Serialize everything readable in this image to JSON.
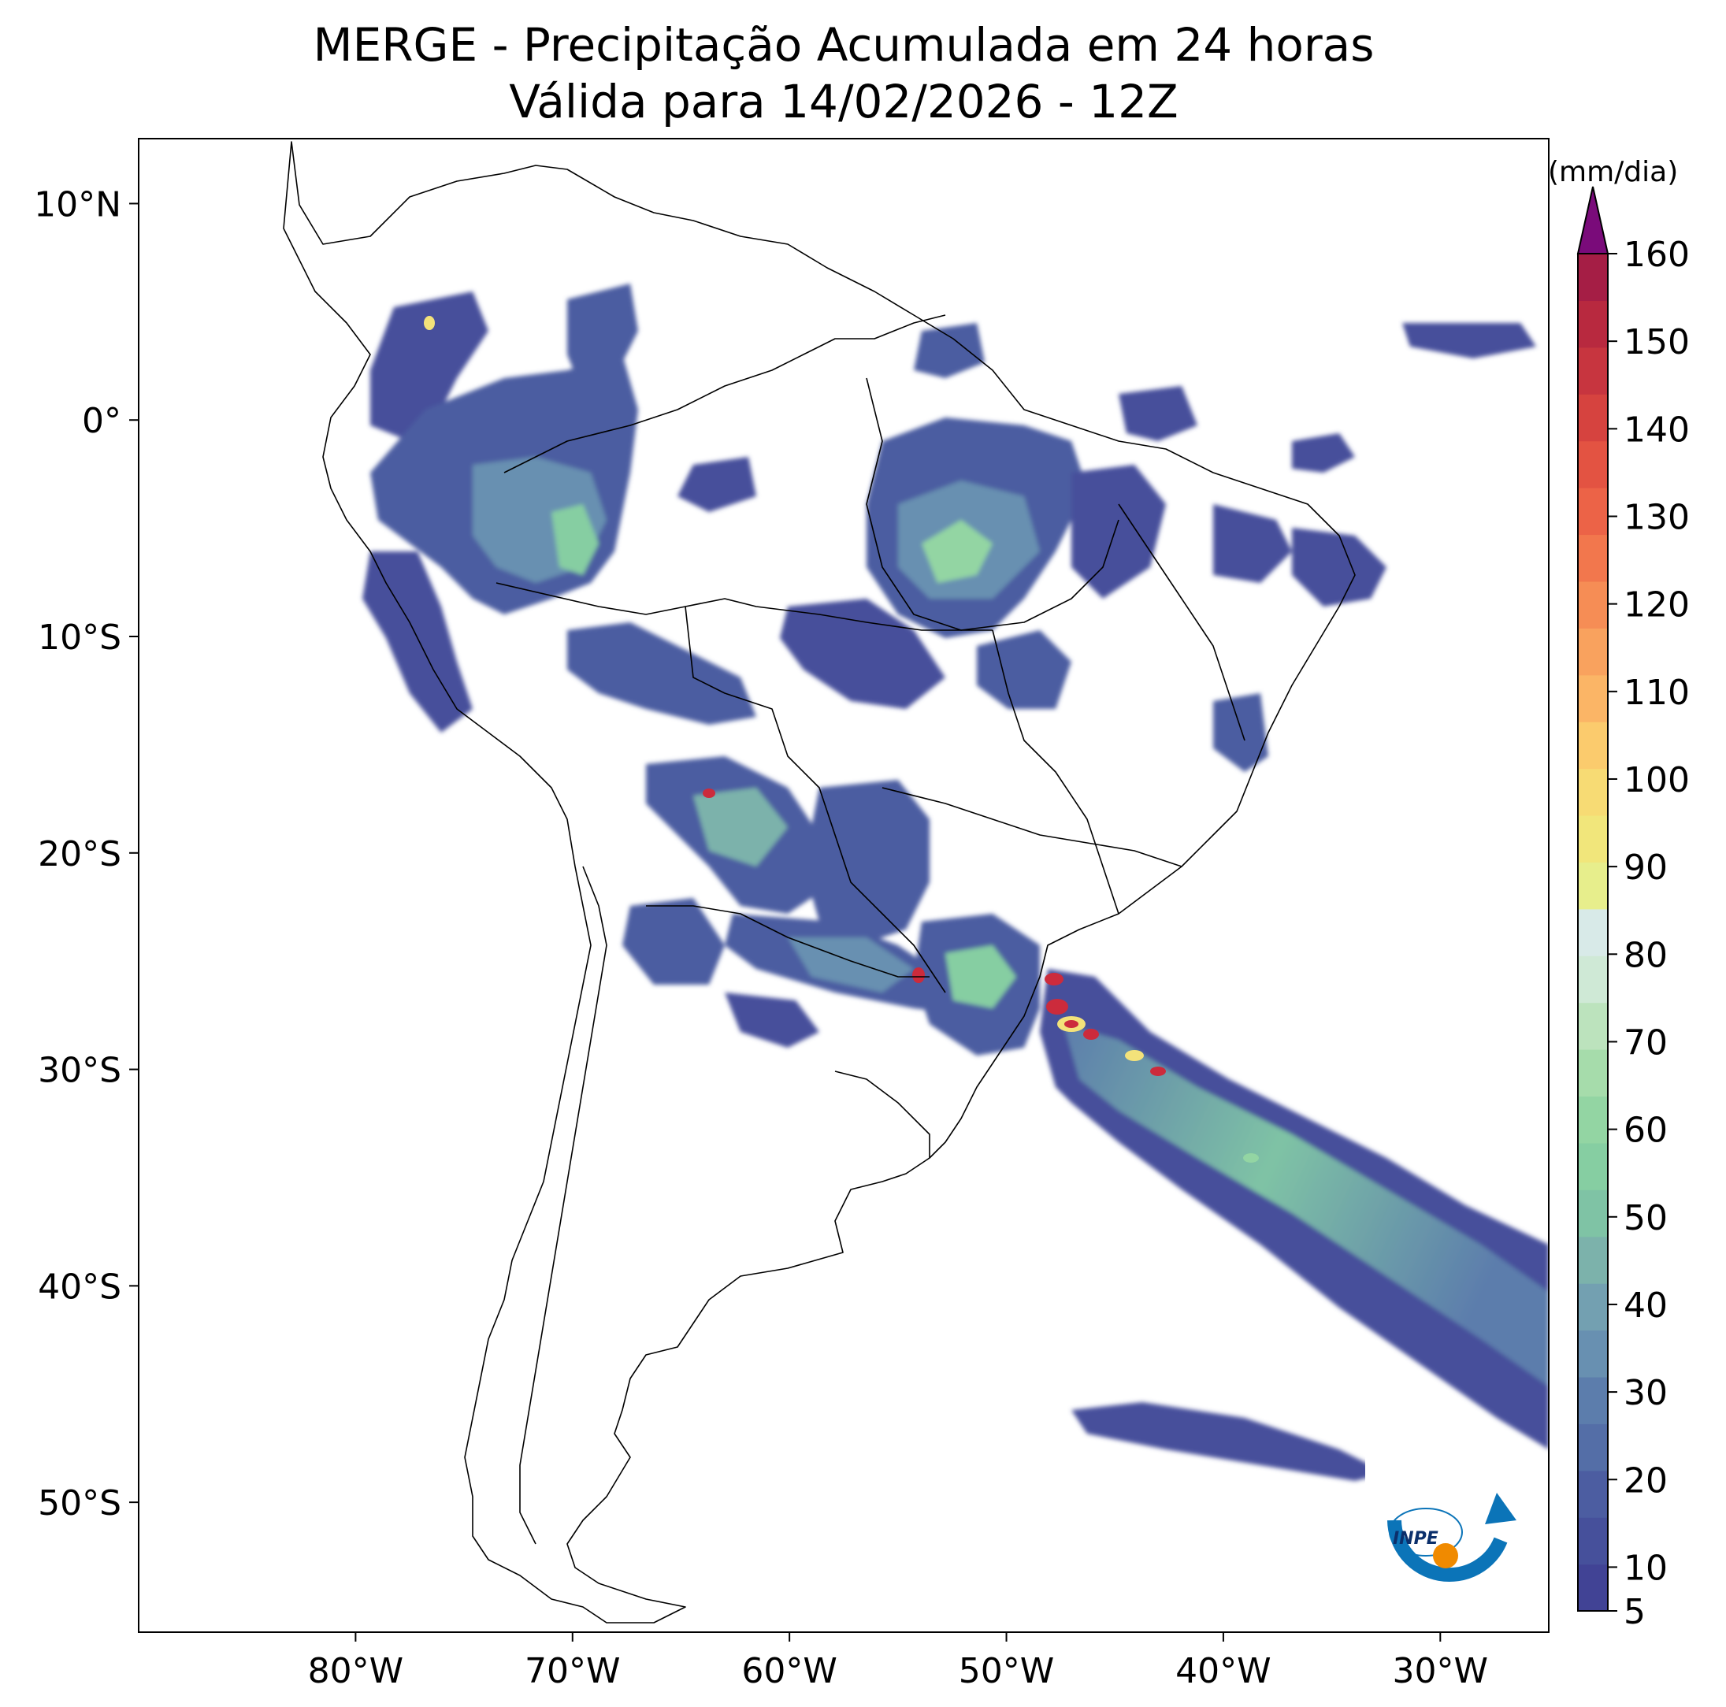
{
  "title": {
    "line1": "MERGE - Precipitação Acumulada em 24 horas",
    "line2": "Válida para 14/02/2026 - 12Z"
  },
  "axes": {
    "lon_labels": [
      "80°W",
      "70°W",
      "60°W",
      "50°W",
      "40°W",
      "30°W"
    ],
    "lat_labels": [
      "10°N",
      "0°",
      "10°S",
      "20°S",
      "30°S",
      "40°S",
      "50°S"
    ]
  },
  "colorbar": {
    "unit": "(mm/dia)",
    "ticks": [
      "5",
      "10",
      "20",
      "30",
      "40",
      "50",
      "60",
      "70",
      "80",
      "90",
      "100",
      "110",
      "120",
      "130",
      "140",
      "150",
      "160"
    ],
    "min": 5,
    "max": 160,
    "extend": "max",
    "colors": [
      "#414395",
      "#46509b",
      "#4c5da1",
      "#546ea7",
      "#5c7dac",
      "#6890b1",
      "#73a0b1",
      "#7cb2ab",
      "#7fc3a5",
      "#86cea2",
      "#93d5a3",
      "#a6dcab",
      "#bce3bd",
      "#cfe9d6",
      "#d8eae8",
      "#e7ee8c",
      "#f1e67b",
      "#f7db74",
      "#fbcb6d",
      "#fbb566",
      "#f9a25e",
      "#f68d55",
      "#f2774d",
      "#ec6347",
      "#e35342",
      "#d6433f",
      "#c7353f",
      "#b8293f",
      "#a51e45"
    ],
    "extend_color": "#7a0b7a"
  },
  "logo": {
    "text": "INPE"
  },
  "map": {
    "region": "South America",
    "lon_range": [
      -90,
      -25
    ],
    "lat_range": [
      -56,
      13
    ],
    "projection": "PlateCarree",
    "colors": {
      "coast": "#000000",
      "precip_low": "#414395",
      "precip_mid": "#5a82aa",
      "precip_high": "#8fd1a0",
      "precip_yellow": "#f3e27a",
      "precip_red": "#cc2b3c"
    }
  }
}
